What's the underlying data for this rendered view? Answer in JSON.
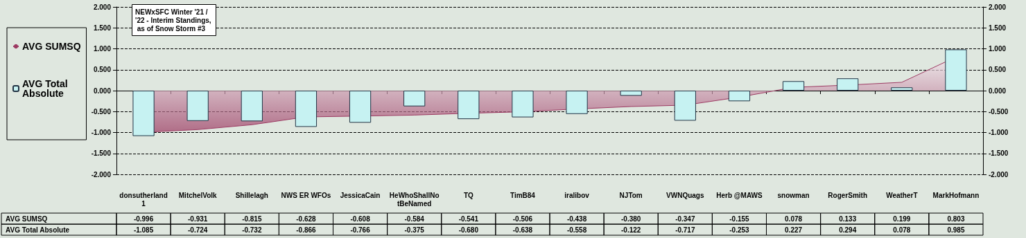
{
  "chart_data": {
    "type": "bar",
    "title": "NEWxSFC Winter '21 / '22 - Interim Standings, as of Snow Storm #3",
    "categories": [
      "donsutherland1",
      "MitchelVolk",
      "Shillelagh",
      "NWS ER WFOs",
      "JessicaCain",
      "HeWhoShallNotBeNamed",
      "TQ",
      "TimB84",
      "iralibov",
      "NJTom",
      "VWNQuags",
      "Herb @MAWS",
      "snowman",
      "RogerSmith",
      "WeatherT",
      "MarkHofmann"
    ],
    "series": [
      {
        "name": "AVG SUMSQ",
        "type": "area",
        "color": "#9c3a62",
        "values": [
          -0.996,
          -0.931,
          -0.815,
          -0.628,
          -0.608,
          -0.584,
          -0.541,
          -0.506,
          -0.438,
          -0.38,
          -0.347,
          -0.155,
          0.078,
          0.133,
          0.199,
          0.803
        ],
        "value_labels": [
          "-0.996",
          "-0.931",
          "-0.815",
          "-0.628",
          "-0.608",
          "-0.584",
          "-0.541",
          "-0.506",
          "-0.438",
          "-0.380",
          "-0.347",
          "-0.155",
          "0.078",
          "0.133",
          "0.199",
          "0.803"
        ]
      },
      {
        "name": "AVG Total Absolute",
        "color": "#c6f2f2",
        "values": [
          -1.085,
          -0.724,
          -0.732,
          -0.866,
          -0.766,
          -0.375,
          -0.68,
          -0.638,
          -0.558,
          -0.122,
          -0.717,
          -0.253,
          0.227,
          0.294,
          0.078,
          0.985
        ],
        "value_labels": [
          "-1.085",
          "-0.724",
          "-0.732",
          "-0.866",
          "-0.766",
          "-0.375",
          "-0.680",
          "-0.638",
          "-0.558",
          "-0.122",
          "-0.717",
          "-0.253",
          "0.227",
          "0.294",
          "0.078",
          "0.985"
        ]
      }
    ],
    "ylim": [
      -2,
      2
    ],
    "yticks": [
      {
        "value": -2,
        "label": "-2.000"
      },
      {
        "value": -1.5,
        "label": "-1.500"
      },
      {
        "value": -1,
        "label": "-1.000"
      },
      {
        "value": -0.5,
        "label": "-0.500"
      },
      {
        "value": 0,
        "label": "0.000"
      },
      {
        "value": 0.5,
        "label": "0.500"
      },
      {
        "value": 1,
        "label": "1.000"
      },
      {
        "value": 1.5,
        "label": "1.500"
      },
      {
        "value": 2,
        "label": "2.000"
      }
    ],
    "y2lim": [
      -2,
      2
    ],
    "y2ticks": [
      {
        "value": -2,
        "label": "-2.000"
      },
      {
        "value": -1.5,
        "label": "-1.500"
      },
      {
        "value": -1,
        "label": "-1.000"
      },
      {
        "value": -0.5,
        "label": "-0.500"
      },
      {
        "value": 0,
        "label": "0.000"
      },
      {
        "value": 0.5,
        "label": "0.500"
      },
      {
        "value": 1,
        "label": "1.000"
      },
      {
        "value": 1.5,
        "label": "1.500"
      },
      {
        "value": 2,
        "label": "2.000"
      }
    ],
    "grid": "y",
    "legend": "left"
  }
}
